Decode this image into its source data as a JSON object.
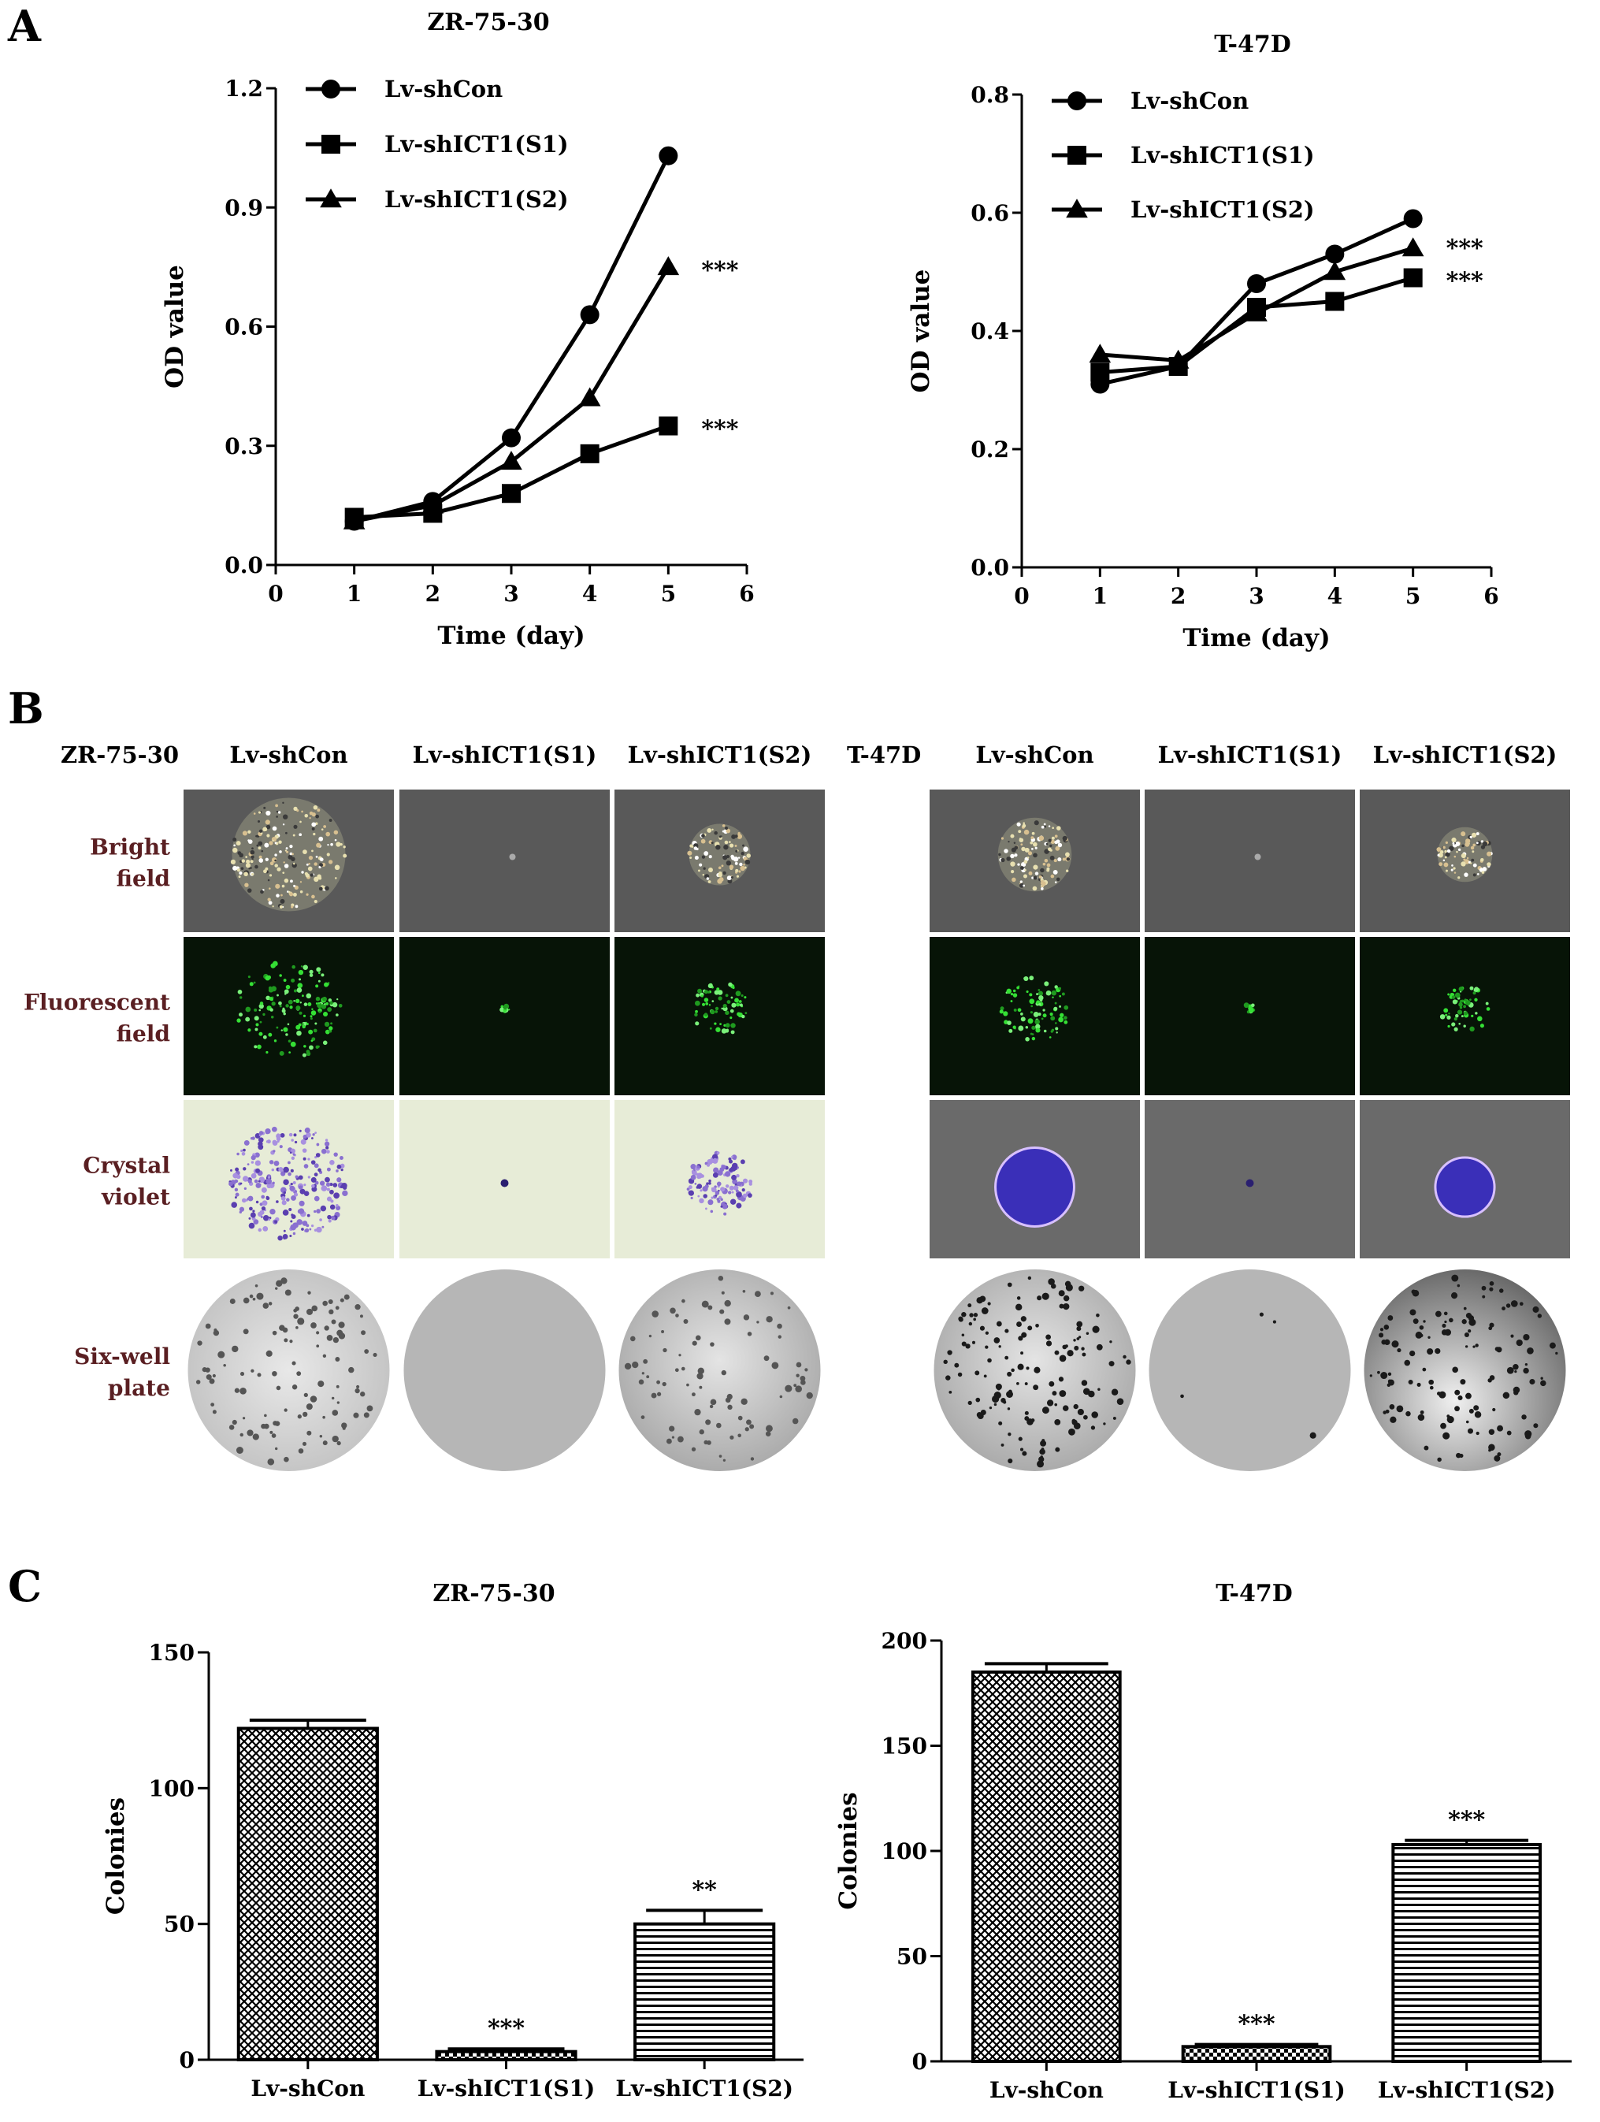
{
  "panels": {
    "a": "A",
    "b": "B",
    "c": "C"
  },
  "chart_data": [
    {
      "id": "A-left",
      "type": "line",
      "title": "ZR-75-30",
      "xlabel": "Time (day)",
      "ylabel": "OD value",
      "xlim": [
        0,
        6
      ],
      "ylim": [
        0,
        1.2
      ],
      "xticks": [
        "0",
        "1",
        "2",
        "3",
        "4",
        "5",
        "6"
      ],
      "yticks": [
        "0.0",
        "0.3",
        "0.6",
        "0.9",
        "1.2"
      ],
      "legend_position": "top-left",
      "x": [
        1,
        2,
        3,
        4,
        5
      ],
      "series": [
        {
          "name": "Lv-shCon",
          "marker": "circle",
          "values": [
            0.11,
            0.16,
            0.32,
            0.63,
            1.03
          ],
          "annotation": ""
        },
        {
          "name": "Lv-shICT1(S1)",
          "marker": "square",
          "values": [
            0.12,
            0.13,
            0.18,
            0.28,
            0.35
          ],
          "annotation": "***"
        },
        {
          "name": "Lv-shICT1(S2)",
          "marker": "triangle",
          "values": [
            0.11,
            0.15,
            0.26,
            0.42,
            0.75
          ],
          "annotation": "***"
        }
      ]
    },
    {
      "id": "A-right",
      "type": "line",
      "title": "T-47D",
      "xlabel": "Time (day)",
      "ylabel": "OD value",
      "xlim": [
        0,
        6
      ],
      "ylim": [
        0,
        0.8
      ],
      "xticks": [
        "0",
        "1",
        "2",
        "3",
        "4",
        "5",
        "6"
      ],
      "yticks": [
        "0.0",
        "0.2",
        "0.4",
        "0.6",
        "0.8"
      ],
      "legend_position": "top-left",
      "x": [
        1,
        2,
        3,
        4,
        5
      ],
      "series": [
        {
          "name": "Lv-shCon",
          "marker": "circle",
          "values": [
            0.31,
            0.34,
            0.48,
            0.53,
            0.59
          ],
          "annotation": ""
        },
        {
          "name": "Lv-shICT1(S1)",
          "marker": "square",
          "values": [
            0.33,
            0.34,
            0.44,
            0.45,
            0.49
          ],
          "annotation": "***"
        },
        {
          "name": "Lv-shICT1(S2)",
          "marker": "triangle",
          "values": [
            0.36,
            0.35,
            0.43,
            0.5,
            0.54
          ],
          "annotation": "***"
        }
      ]
    },
    {
      "id": "C-left",
      "type": "bar",
      "title": "ZR-75-30",
      "ylabel": "Colonies",
      "xlabel": "",
      "ylim": [
        0,
        150
      ],
      "yticks": [
        "0",
        "50",
        "100",
        "150"
      ],
      "categories": [
        "Lv-shCon",
        "Lv-shICT1(S1)",
        "Lv-shICT1(S2)"
      ],
      "values": [
        122,
        3,
        50
      ],
      "errors": [
        3,
        1,
        5
      ],
      "patterns": [
        "crosshatch",
        "checker",
        "horizontal"
      ],
      "annotations": [
        "",
        "***",
        "**"
      ]
    },
    {
      "id": "C-right",
      "type": "bar",
      "title": "T-47D",
      "ylabel": "Colonies",
      "xlabel": "",
      "ylim": [
        0,
        200
      ],
      "yticks": [
        "0",
        "50",
        "100",
        "150",
        "200"
      ],
      "categories": [
        "Lv-shCon",
        "Lv-shICT1(S1)",
        "Lv-shICT1(S2)"
      ],
      "values": [
        185,
        7,
        103
      ],
      "errors": [
        4,
        1,
        2
      ],
      "patterns": [
        "crosshatch",
        "checker",
        "horizontal"
      ],
      "annotations": [
        "",
        "***",
        "***"
      ]
    }
  ],
  "panel_b": {
    "left": {
      "cell_line": "ZR-75-30",
      "columns": [
        "Lv-shCon",
        "Lv-shICT1(S1)",
        "Lv-shICT1(S2)"
      ]
    },
    "right": {
      "cell_line": "T-47D",
      "columns": [
        "Lv-shCon",
        "Lv-shICT1(S1)",
        "Lv-shICT1(S2)"
      ]
    },
    "rows": [
      {
        "line1": "Bright",
        "line2": "field"
      },
      {
        "line1": "Fluorescent",
        "line2": "field"
      },
      {
        "line1": "Crystal",
        "line2": "violet"
      },
      {
        "line1": "Six-well",
        "line2": "plate"
      }
    ],
    "colors": {
      "bright_bg": "#595959",
      "fluor_bg": "#071407",
      "fluor_green": "#35e035",
      "crystal_bg_left": "#e7ecd7",
      "crystal_bg_right": "#6a6a6a",
      "crystal_violet": "#5a3fb0",
      "plate_bg": "#b6b6b6",
      "label_color": "#5a1f22"
    }
  }
}
